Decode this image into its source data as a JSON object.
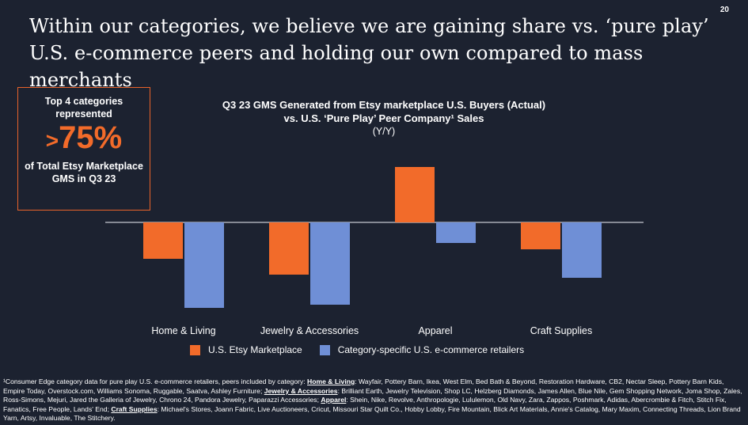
{
  "page_number": "20",
  "headline": "Within our categories, we believe we are gaining share vs. ‘pure play’ U.S. e-commerce peers and holding our own compared to mass merchants",
  "callout": {
    "top": "Top 4 categories represented",
    "big_prefix": ">",
    "big_value": "75%",
    "bottom": "of Total Etsy Marketplace GMS in Q3 23"
  },
  "chart_data": {
    "type": "bar",
    "title_line1": "Q3 23 GMS Generated from Etsy marketplace U.S. Buyers (Actual)",
    "title_line2": "vs. U.S. ‘Pure Play’ Peer Company¹ Sales",
    "subtitle": "(Y/Y)",
    "categories": [
      "Home & Living",
      "Jewelry & Accessories",
      "Apparel",
      "Craft Supplies"
    ],
    "series": [
      {
        "name": "U.S. Etsy Marketplace",
        "color": "#f26b2a",
        "values": [
          -4.6,
          -6.6,
          7.0,
          -3.4
        ]
      },
      {
        "name": "Category-specific U.S. e-commerce retailers",
        "color": "#6f8fd6",
        "values": [
          -10.8,
          -10.4,
          -2.6,
          -7.0
        ]
      }
    ],
    "ylim": [
      -11,
      8
    ],
    "axis_labels": false,
    "grid": false,
    "legend_position": "bottom"
  },
  "footnote": {
    "intro": "¹Consumer Edge category data for pure play U.S. e-commerce retailers, peers included by category: ",
    "groups": [
      {
        "category": "Home & Living",
        "peers": ": Wayfair, Pottery Barn, Ikea, West Elm, Bed Bath & Beyond, Restoration Hardware, CB2, Nectar Sleep, Pottery Barn Kids, Empire Today, Overstock.com, Williams Sonoma, Ruggable, Saatva, Ashley Furniture; "
      },
      {
        "category": "Jewelry & Accessories",
        "peers": ": Brilliant Earth, Jewelry Television, Shop LC, Helzberg Diamonds, James Allen, Blue Nile, Gem Shopping Network, Joma Shop, Zales, Ross-Simons, Mejuri, Jared the Galleria of Jewelry, Chrono 24, Pandora Jewelry, Paparazzi Accessories; "
      },
      {
        "category": "Apparel",
        "peers": ": Shein, Nike, Revolve, Anthropologie, Lululemon, Old Navy, Zara, Zappos, Poshmark, Adidas, Abercrombie & Fitch, Stitch Fix, Fanatics, Free People, Lands' End; "
      },
      {
        "category": "Craft Supplies",
        "peers": ": Michael's Stores, Joann Fabric, Live Auctioneers, Cricut, Missouri Star Quilt Co., Hobby Lobby, Fire Mountain, Blick Art Materials, Annie's Catalog, Mary Maxim, Connecting Threads, Lion Brand Yarn, Artsy, Invaluable, The Stitchery."
      }
    ]
  }
}
